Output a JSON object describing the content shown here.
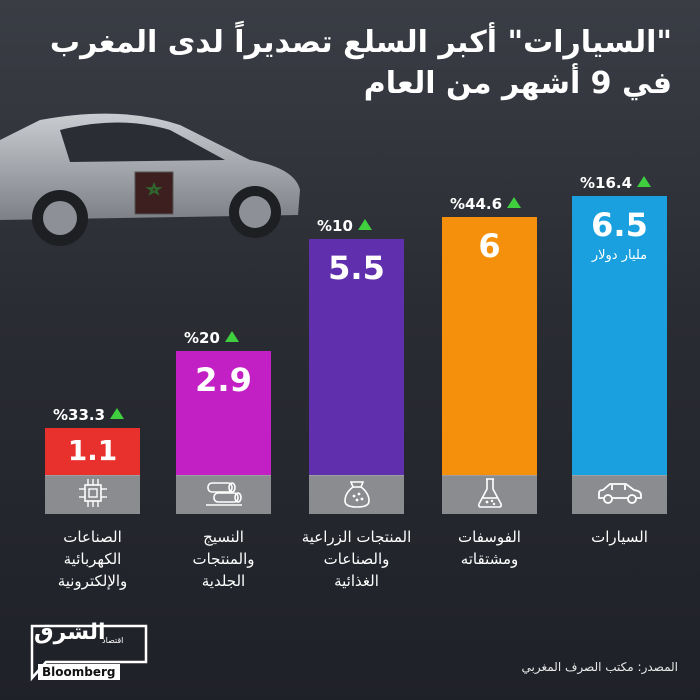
{
  "title_line1": "\"السيارات\" أكبر السلع تصديراً لدى المغرب",
  "title_line2": "في 9 أشهر من العام",
  "source": "المصدر: مكتب الصرف المغربي",
  "logo": {
    "brand_ar": "الشرق",
    "brand_sub": "اقتصاد",
    "brand_en": "Bloomberg"
  },
  "chart_data": {
    "type": "bar",
    "title": "\"السيارات\" أكبر السلع تصديراً لدى المغرب في 9 أشهر من العام",
    "unit": "مليار دولار",
    "ylim": [
      0,
      6.5
    ],
    "categories": [
      "الصناعات الكهربائية والإلكترونية",
      "النسيج والمنتجات الجلدية",
      "المنتجات الزراعية والصناعات الغذائية",
      "الفوسفات ومشتقاته",
      "السيارات"
    ],
    "category_lines": [
      [
        "الصناعات",
        "الكهربائية",
        "والإلكترونية"
      ],
      [
        "النسيج",
        "والمنتجات",
        "الجلدية"
      ],
      [
        "المنتجات الزراعية",
        "والصناعات",
        "الغذائية"
      ],
      [
        "الفوسفات",
        "ومشتقاته"
      ],
      [
        "السيارات"
      ]
    ],
    "values": [
      1.1,
      2.9,
      5.5,
      6,
      6.5
    ],
    "value_labels": [
      "1.1",
      "2.9",
      "5.5",
      "6",
      "6.5"
    ],
    "growth_labels": [
      "%33.3",
      "%20",
      "%10",
      "%44.6",
      "%16.4"
    ],
    "growth_direction": "up",
    "colors": [
      "#e8302c",
      "#c21fc4",
      "#5f2fae",
      "#f5900d",
      "#1aa0de"
    ],
    "icons": [
      "chip-icon",
      "fabric-rolls-icon",
      "grain-sack-icon",
      "flask-icon",
      "car-icon"
    ],
    "grid": false,
    "legend": "none"
  },
  "colors": {
    "growth_arrow": "#3fcf3f",
    "icon_strip": "#8a8c8f"
  }
}
